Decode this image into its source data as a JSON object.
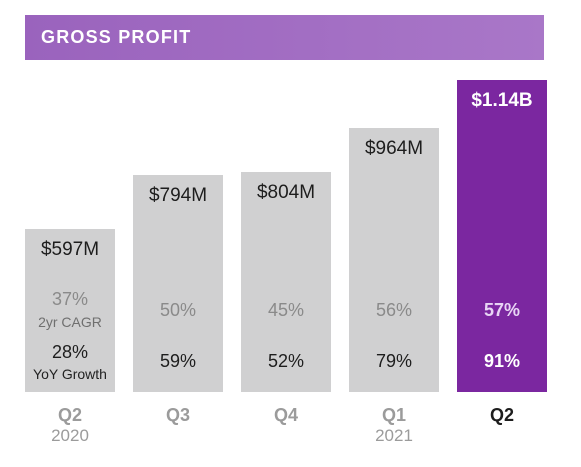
{
  "header": {
    "title": "GROSS PROFIT"
  },
  "chart_data": {
    "type": "bar",
    "title": "GROSS PROFIT",
    "categories": [
      "Q2",
      "Q3",
      "Q4",
      "Q1",
      "Q2"
    ],
    "years": [
      "2020",
      "",
      "",
      "2021",
      ""
    ],
    "values": [
      597,
      794,
      804,
      964,
      1140
    ],
    "value_unit": "USD millions",
    "value_labels": [
      "$597M",
      "$794M",
      "$804M",
      "$964M",
      "$1.14B"
    ],
    "cagr_labels": [
      "37%",
      "50%",
      "45%",
      "56%",
      "57%"
    ],
    "cagr_row_label": "2yr CAGR",
    "yoy_labels": [
      "28%",
      "59%",
      "52%",
      "79%",
      "91%"
    ],
    "yoy_row_label": "YoY Growth",
    "highlight_index": 4,
    "colors": {
      "bar": "#d0d0d1",
      "highlight": "#7b27a0",
      "header": "#a26bc4"
    },
    "legend": "none",
    "grid": false
  }
}
